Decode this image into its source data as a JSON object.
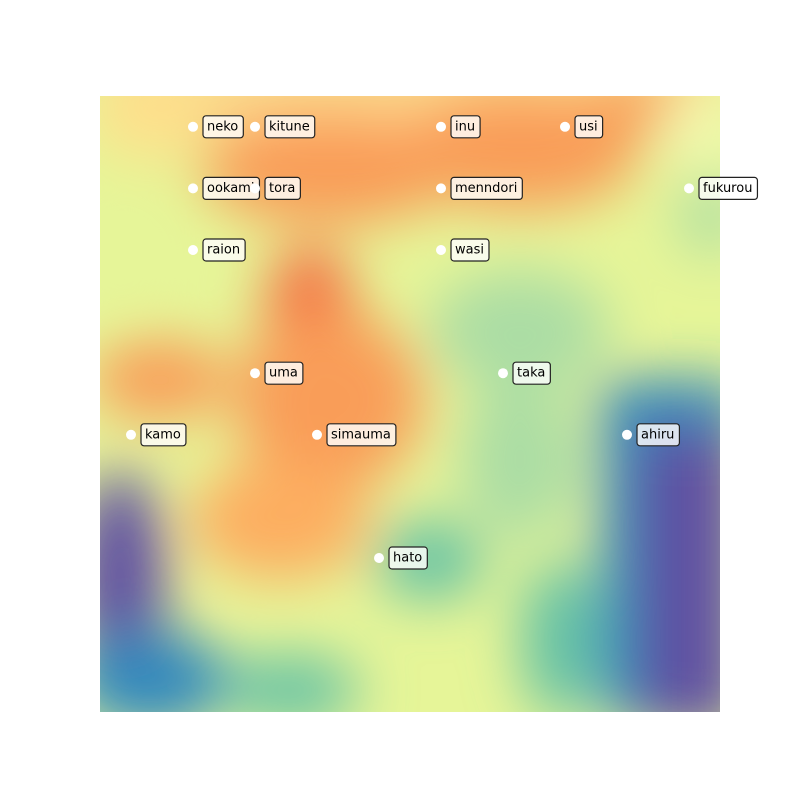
{
  "chart_data": {
    "type": "scatter",
    "labels": [
      "neko",
      "kitune",
      "inu",
      "usi",
      "ookami",
      "tora",
      "menndori",
      "fukurou",
      "raion",
      "wasi",
      "uma",
      "taka",
      "kamo",
      "simauma",
      "ahiru",
      "hato"
    ],
    "x": [
      1,
      2,
      5,
      7,
      1,
      2,
      5,
      9,
      1,
      5,
      2,
      6,
      0,
      3,
      8,
      4
    ],
    "y": [
      0,
      0,
      0,
      0,
      1,
      1,
      1,
      1,
      2,
      2,
      4,
      4,
      5,
      5,
      5,
      7
    ],
    "xlim": [
      -0.5,
      9.5
    ],
    "ylim": [
      9.5,
      -0.5
    ],
    "color": "#ffffff"
  }
}
